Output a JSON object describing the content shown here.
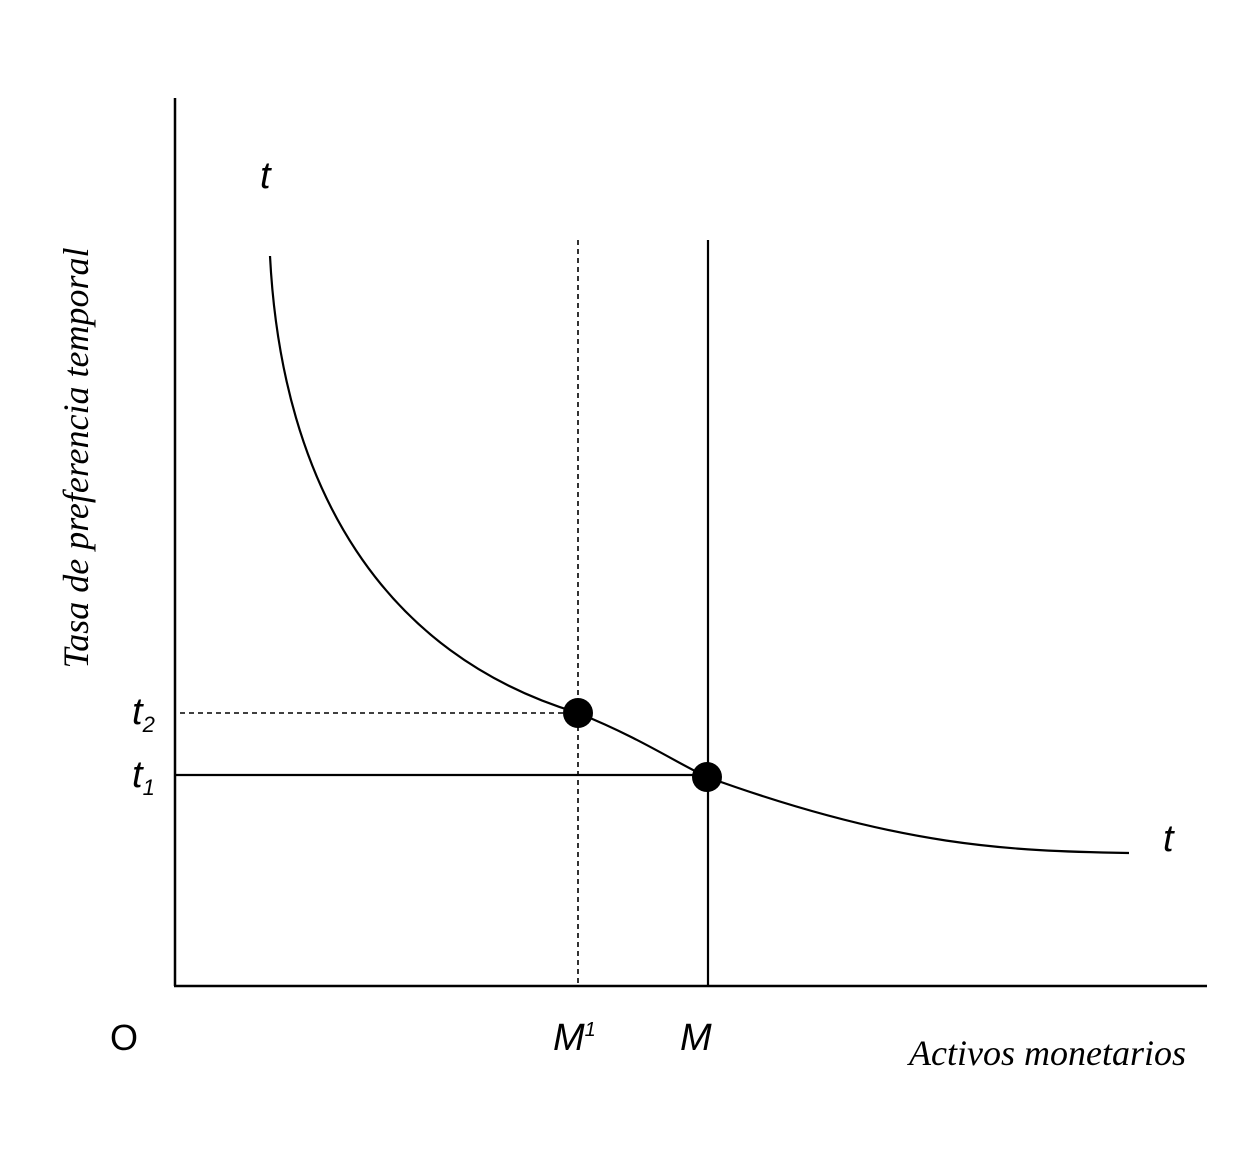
{
  "diagram": {
    "origin_label": "O",
    "y_axis_label": "Tasa de preferencia temporal",
    "x_axis_label": "Activos monetarios",
    "curve_label_top": "t",
    "curve_label_right": "t",
    "tick_labels": {
      "t2": {
        "base": "t",
        "sub": "2"
      },
      "t1": {
        "base": "t",
        "sub": "1"
      },
      "m1": {
        "base": "M",
        "sup": "1"
      },
      "m": {
        "base": "M"
      }
    },
    "colors": {
      "ink": "#000000",
      "background": "#ffffff"
    }
  }
}
